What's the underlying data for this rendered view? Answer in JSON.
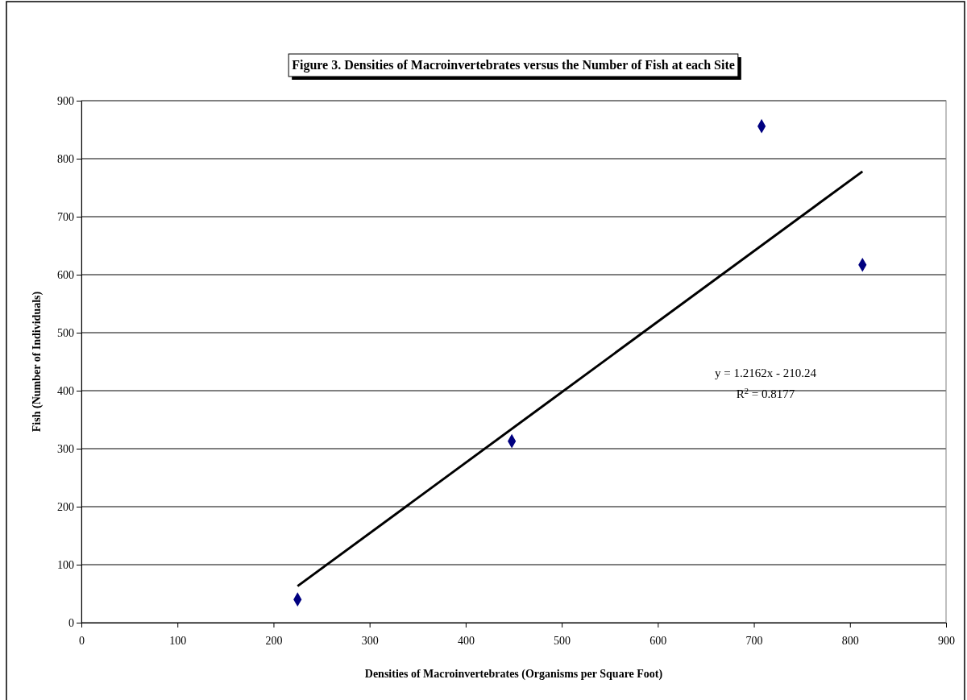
{
  "chart_data": {
    "type": "scatter",
    "title": "Figure 3.  Densities of Macroinvertebrates versus the Number of Fish at each Site",
    "xlabel": "Densities of Macroinvertebrates (Organisms per Square Foot)",
    "ylabel": "Fish (Number of Individuals)",
    "series": [
      {
        "color": "#000080",
        "marker": "diamond",
        "x": [
          225,
          448,
          708,
          813
        ],
        "values": [
          40,
          313,
          856,
          617
        ]
      },
      {
        "type": "line",
        "color": "#000000",
        "line_style": "solid",
        "x": [
          225,
          813
        ],
        "values": [
          63,
          778
        ]
      }
    ],
    "xlim": [
      0,
      900
    ],
    "xticks": [
      0,
      100,
      200,
      300,
      400,
      500,
      600,
      700,
      800,
      900
    ],
    "ylim": [
      0,
      900
    ],
    "yticks": [
      0,
      100,
      200,
      300,
      400,
      500,
      600,
      700,
      800,
      900
    ],
    "grid": "y",
    "annotations": [
      "y = 1.2162x - 210.24",
      "R$^{2}$ = 0.8177"
    ]
  }
}
